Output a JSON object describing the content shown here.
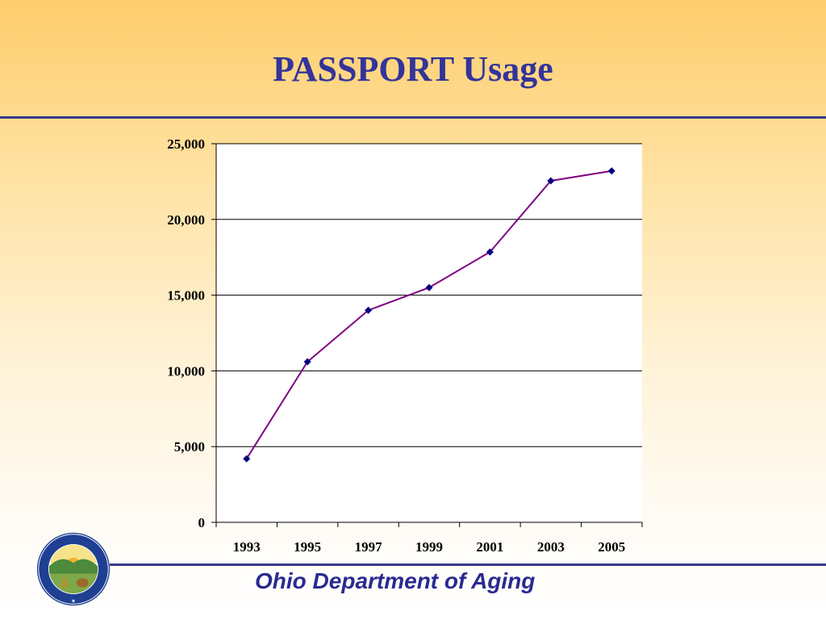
{
  "slide": {
    "title": "PASSPORT Usage",
    "footer": "Ohio Department of Aging",
    "seal_text": "OHIO DEPARTMENT OF AGING"
  },
  "colors": {
    "title": "#33339a",
    "rule": "#3a3a8c",
    "line": "#800080",
    "marker": "#000080"
  },
  "chart_data": {
    "type": "line",
    "categories": [
      "1993",
      "1995",
      "1997",
      "1999",
      "2001",
      "2003",
      "2005"
    ],
    "series": [
      {
        "values": [
          4200,
          10600,
          14000,
          15500,
          17850,
          22550,
          23200
        ]
      }
    ],
    "yticks": [
      "0",
      "5,000",
      "10,000",
      "15,000",
      "20,000",
      "25,000"
    ],
    "ylim": [
      0,
      25000
    ],
    "grid": true,
    "legend": "none"
  }
}
